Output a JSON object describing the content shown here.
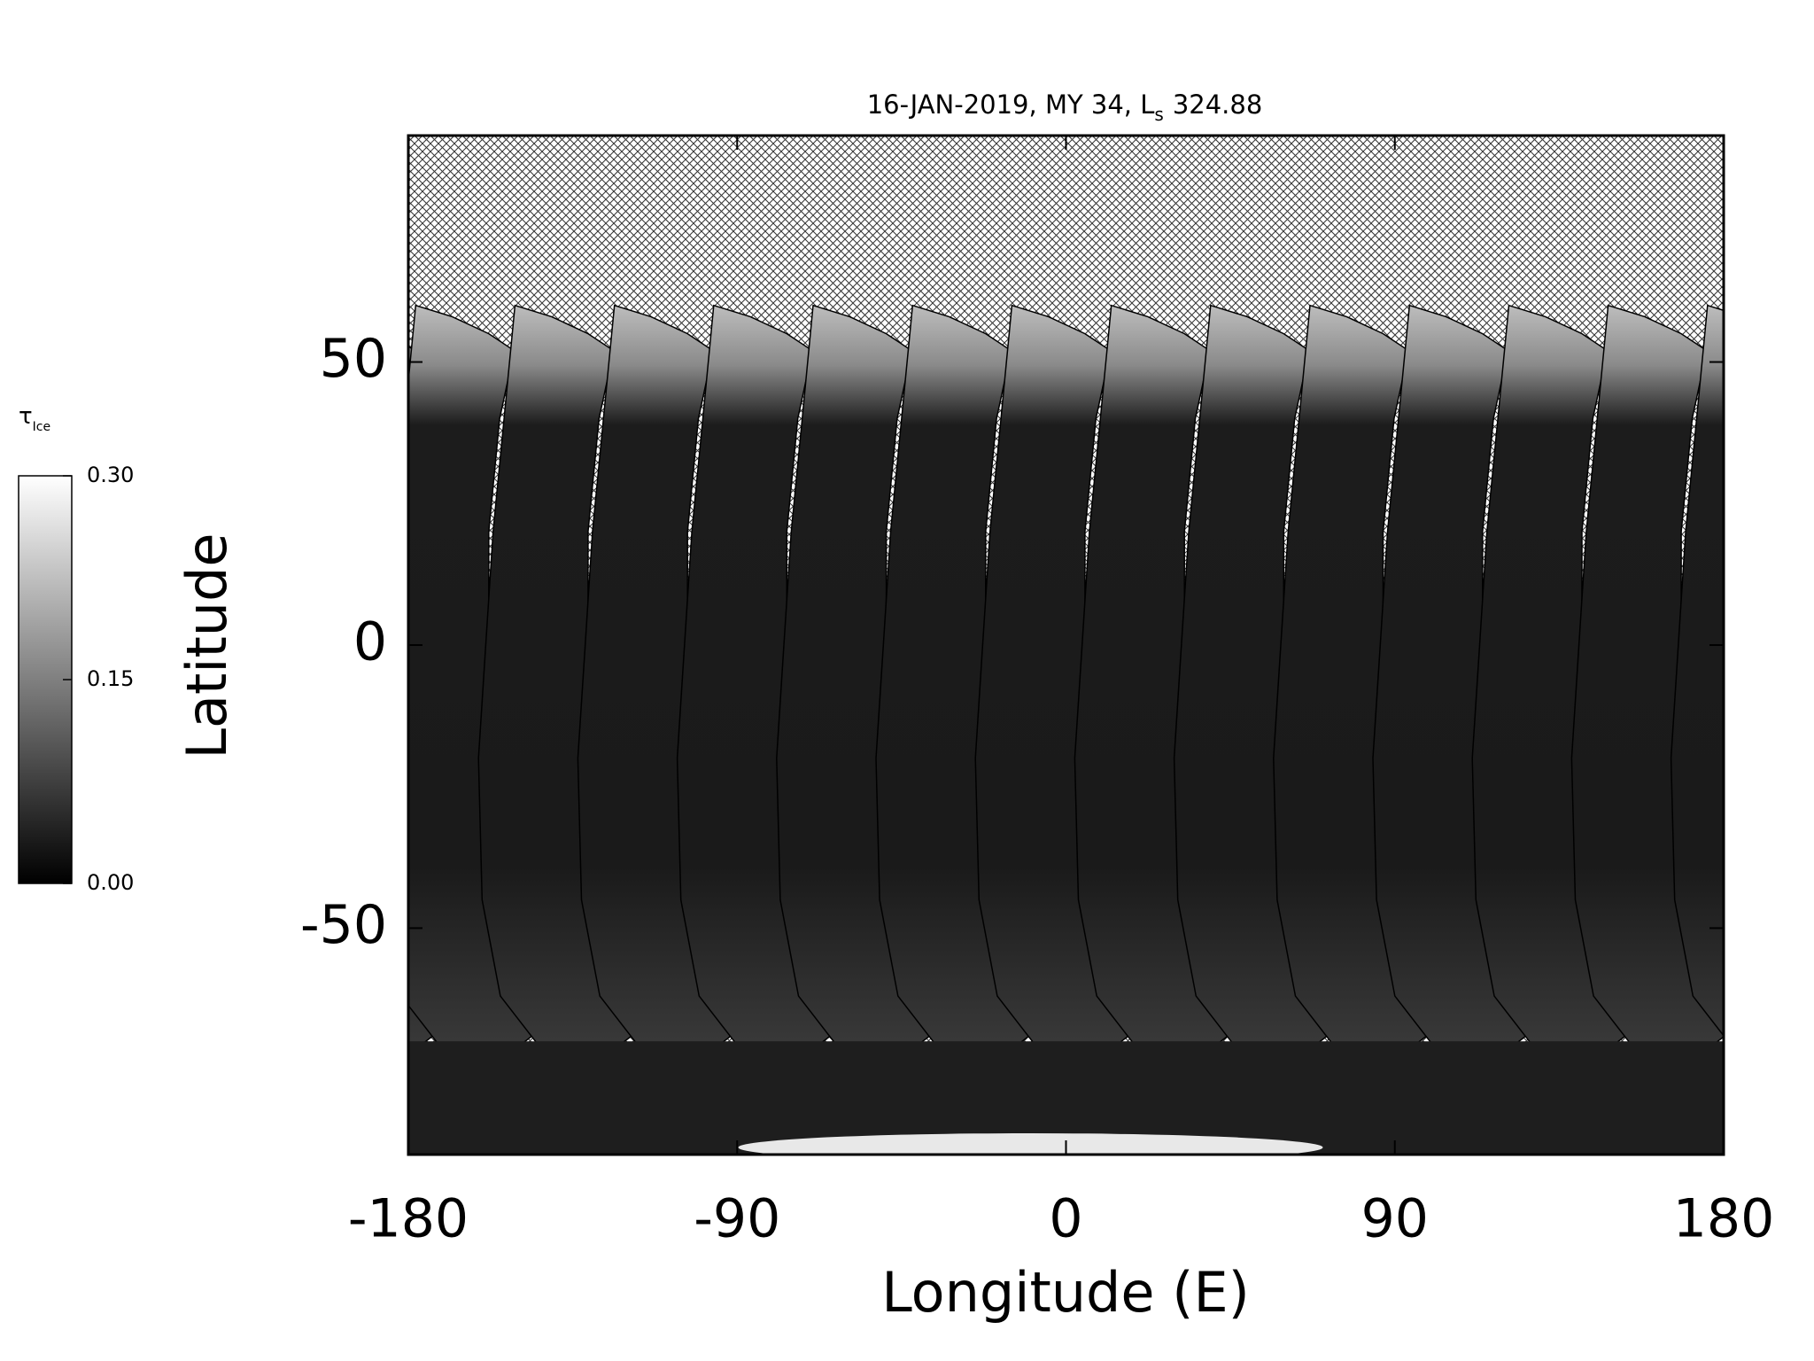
{
  "chart_data": {
    "type": "map",
    "title": {
      "prefix": "16-JAN-2019, MY 34,  L",
      "subscript": "s",
      "suffix": "324.88"
    },
    "xlabel": "Longitude (E)",
    "ylabel": "Latitude",
    "xlim": [
      -180,
      180
    ],
    "xticks": [
      -180,
      -90,
      0,
      90,
      180
    ],
    "ylim": [
      -90,
      90
    ],
    "yticks": [
      -50,
      0,
      50
    ],
    "colorbar": {
      "label": {
        "symbol": "τ",
        "subscript": "Ice"
      },
      "lim": [
        0,
        0.3
      ],
      "ticks": [
        {
          "value": 0.3,
          "label": "0.30"
        },
        {
          "value": 0.15,
          "label": "0.15"
        },
        {
          "value": 0,
          "label": "0.00"
        }
      ],
      "colors": [
        "#000000",
        "#ffffff"
      ]
    }
  }
}
